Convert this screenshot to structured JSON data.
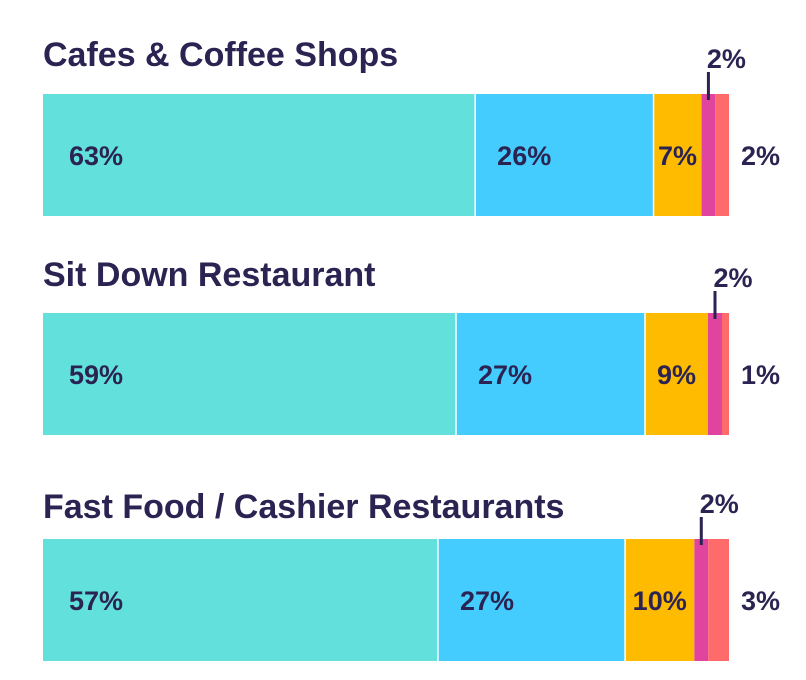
{
  "colors": {
    "text": "#2b2452",
    "connector": "#2b2452",
    "separator": "#ffffff"
  },
  "chart_data": {
    "type": "bar",
    "orientation": "horizontal",
    "stacked": true,
    "normalized": true,
    "grid": false,
    "legend": "none",
    "value_unit": "%",
    "segment_colors": [
      "#62e0dc",
      "#44ccff",
      "#ffbb00",
      "#e0449e",
      "#ff6b6b"
    ],
    "bars": [
      {
        "name": "Cafes & Coffee Shops",
        "values": [
          63,
          26,
          7,
          2,
          2
        ],
        "labels": [
          "63%",
          "26%",
          "7%",
          "2%",
          "2%"
        ]
      },
      {
        "name": "Sit Down Restaurant",
        "values": [
          59,
          27,
          9,
          2,
          1
        ],
        "labels": [
          "59%",
          "27%",
          "9%",
          "2%",
          "1%"
        ]
      },
      {
        "name": "Fast Food / Cashier Restaurants",
        "values": [
          57,
          27,
          10,
          2,
          3
        ],
        "labels": [
          "57%",
          "27%",
          "10%",
          "2%",
          "3%"
        ]
      }
    ]
  }
}
